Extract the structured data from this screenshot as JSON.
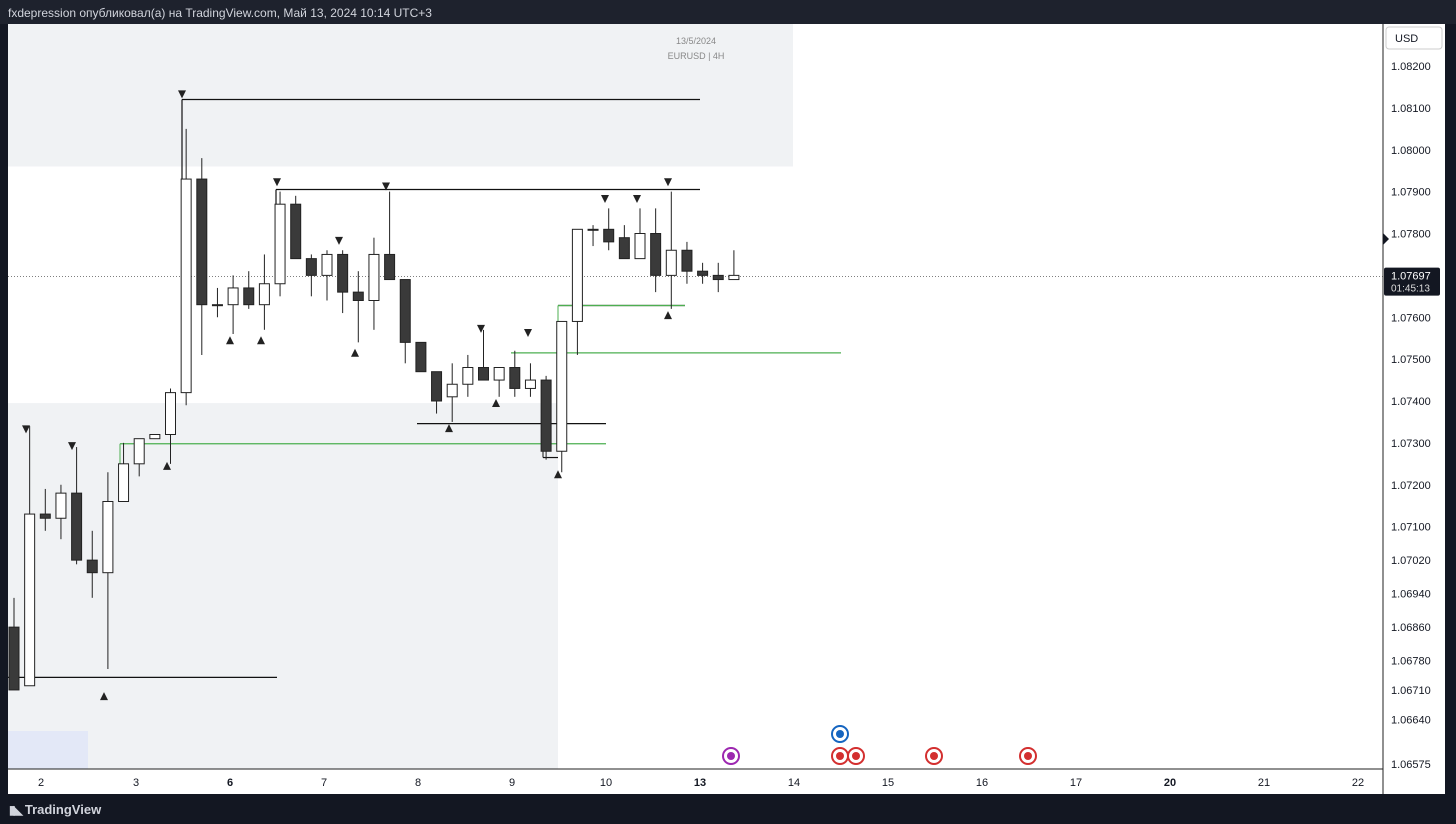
{
  "header": {
    "caption": "fxdepression опубликовал(а) на TradingView.com, Май 13, 2024 10:14 UTC+3"
  },
  "footer": {
    "brand": "TradingView"
  },
  "chart_data": {
    "type": "candlestick",
    "symbol_label": "EURUSD | 4H",
    "date_label": "13/5/2024",
    "currency": "USD",
    "last_price": "1.07697",
    "countdown": "01:45:13",
    "y_ticks": [
      "1.08200",
      "1.08100",
      "1.08000",
      "1.07900",
      "1.07800",
      "1.07600",
      "1.07500",
      "1.07400",
      "1.07300",
      "1.07200",
      "1.07100",
      "1.07020",
      "1.06940",
      "1.06860",
      "1.06780",
      "1.06710",
      "1.06640",
      "1.06575"
    ],
    "x_ticks": [
      {
        "label": "2",
        "bold": false
      },
      {
        "label": "3",
        "bold": false
      },
      {
        "label": "6",
        "bold": true
      },
      {
        "label": "7",
        "bold": false
      },
      {
        "label": "8",
        "bold": false
      },
      {
        "label": "9",
        "bold": false
      },
      {
        "label": "10",
        "bold": false
      },
      {
        "label": "13",
        "bold": true
      },
      {
        "label": "14",
        "bold": false
      },
      {
        "label": "15",
        "bold": false
      },
      {
        "label": "16",
        "bold": false
      },
      {
        "label": "17",
        "bold": false
      },
      {
        "label": "20",
        "bold": true
      },
      {
        "label": "21",
        "bold": false
      },
      {
        "label": "22",
        "bold": false
      }
    ],
    "colors": {
      "bull": "#ffffff",
      "bear": "#3a3a3a",
      "outline": "#222222",
      "level": "#4caf50",
      "zone": "#f0f2f4",
      "zone_blue": "#e3e8f7"
    },
    "candles": [
      {
        "o": 1.0686,
        "h": 1.0693,
        "l": 1.0671,
        "c": 1.0671
      },
      {
        "o": 1.0672,
        "h": 1.0734,
        "l": 1.0672,
        "c": 1.0713
      },
      {
        "o": 1.0713,
        "h": 1.0719,
        "l": 1.0709,
        "c": 1.0712
      },
      {
        "o": 1.0712,
        "h": 1.072,
        "l": 1.0707,
        "c": 1.0718
      },
      {
        "o": 1.0718,
        "h": 1.0729,
        "l": 1.0701,
        "c": 1.0702
      },
      {
        "o": 1.0702,
        "h": 1.0709,
        "l": 1.0693,
        "c": 1.0699
      },
      {
        "o": 1.0699,
        "h": 1.0723,
        "l": 1.0676,
        "c": 1.0716
      },
      {
        "o": 1.0716,
        "h": 1.073,
        "l": 1.0716,
        "c": 1.0725
      },
      {
        "o": 1.0725,
        "h": 1.0731,
        "l": 1.0722,
        "c": 1.0731
      },
      {
        "o": 1.0731,
        "h": 1.0732,
        "l": 1.0731,
        "c": 1.0732
      },
      {
        "o": 1.0732,
        "h": 1.0743,
        "l": 1.0725,
        "c": 1.0742
      },
      {
        "o": 1.0742,
        "h": 1.0805,
        "l": 1.0739,
        "c": 1.0793
      },
      {
        "o": 1.0793,
        "h": 1.0798,
        "l": 1.0751,
        "c": 1.0763
      },
      {
        "o": 1.0763,
        "h": 1.0767,
        "l": 1.076,
        "c": 1.0763
      },
      {
        "o": 1.0763,
        "h": 1.077,
        "l": 1.0756,
        "c": 1.0767
      },
      {
        "o": 1.0767,
        "h": 1.0771,
        "l": 1.0762,
        "c": 1.0763
      },
      {
        "o": 1.0763,
        "h": 1.0775,
        "l": 1.0757,
        "c": 1.0768
      },
      {
        "o": 1.0768,
        "h": 1.079,
        "l": 1.0765,
        "c": 1.0787
      },
      {
        "o": 1.0787,
        "h": 1.0789,
        "l": 1.0774,
        "c": 1.0774
      },
      {
        "o": 1.0774,
        "h": 1.0775,
        "l": 1.0765,
        "c": 1.077
      },
      {
        "o": 1.077,
        "h": 1.0776,
        "l": 1.0764,
        "c": 1.0775
      },
      {
        "o": 1.0775,
        "h": 1.0776,
        "l": 1.0761,
        "c": 1.0766
      },
      {
        "o": 1.0766,
        "h": 1.0771,
        "l": 1.0754,
        "c": 1.0764
      },
      {
        "o": 1.0764,
        "h": 1.0779,
        "l": 1.0757,
        "c": 1.0775
      },
      {
        "o": 1.0775,
        "h": 1.079,
        "l": 1.077,
        "c": 1.0769
      },
      {
        "o": 1.0769,
        "h": 1.0769,
        "l": 1.0749,
        "c": 1.0754
      },
      {
        "o": 1.0754,
        "h": 1.0754,
        "l": 1.0747,
        "c": 1.0747
      },
      {
        "o": 1.0747,
        "h": 1.0747,
        "l": 1.0737,
        "c": 1.074
      },
      {
        "o": 1.0741,
        "h": 1.0749,
        "l": 1.0735,
        "c": 1.0744
      },
      {
        "o": 1.0744,
        "h": 1.0751,
        "l": 1.0741,
        "c": 1.0748
      },
      {
        "o": 1.0748,
        "h": 1.0757,
        "l": 1.0745,
        "c": 1.0745
      },
      {
        "o": 1.0745,
        "h": 1.0748,
        "l": 1.0741,
        "c": 1.0748
      },
      {
        "o": 1.0748,
        "h": 1.0752,
        "l": 1.0741,
        "c": 1.0743
      },
      {
        "o": 1.0743,
        "h": 1.0749,
        "l": 1.0741,
        "c": 1.0745
      },
      {
        "o": 1.0745,
        "h": 1.0746,
        "l": 1.0726,
        "c": 1.0728
      },
      {
        "o": 1.0728,
        "h": 1.0759,
        "l": 1.0723,
        "c": 1.0759
      },
      {
        "o": 1.0759,
        "h": 1.0781,
        "l": 1.0751,
        "c": 1.0781
      },
      {
        "o": 1.0781,
        "h": 1.0782,
        "l": 1.0777,
        "c": 1.0781
      },
      {
        "o": 1.0781,
        "h": 1.0786,
        "l": 1.0776,
        "c": 1.0778
      },
      {
        "o": 1.0779,
        "h": 1.0782,
        "l": 1.0774,
        "c": 1.0774
      },
      {
        "o": 1.0774,
        "h": 1.0786,
        "l": 1.0774,
        "c": 1.078
      },
      {
        "o": 1.078,
        "h": 1.0786,
        "l": 1.0766,
        "c": 1.077
      },
      {
        "o": 1.077,
        "h": 1.079,
        "l": 1.0762,
        "c": 1.0776
      },
      {
        "o": 1.0776,
        "h": 1.0778,
        "l": 1.0768,
        "c": 1.0771
      },
      {
        "o": 1.0771,
        "h": 1.0773,
        "l": 1.0768,
        "c": 1.077
      },
      {
        "o": 1.077,
        "h": 1.0773,
        "l": 1.0766,
        "c": 1.0769
      },
      {
        "o": 1.0769,
        "h": 1.0776,
        "l": 1.0769,
        "c": 1.077
      }
    ]
  }
}
